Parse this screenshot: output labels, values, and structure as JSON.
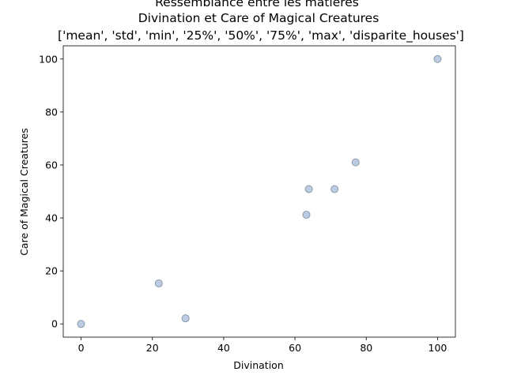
{
  "chart_data": {
    "type": "scatter",
    "title_lines": [
      "Ressemblance entre les matières",
      "Divination et Care of Magical Creatures",
      "['mean', 'std', 'min', '25%', '50%', '75%', 'max', 'disparite_houses']"
    ],
    "xlabel": "Divination",
    "ylabel": "Care of Magical Creatures",
    "xlim": [
      -5,
      105
    ],
    "ylim": [
      -5,
      105
    ],
    "xticks": [
      0,
      20,
      40,
      60,
      80,
      100
    ],
    "yticks": [
      0,
      20,
      40,
      60,
      80,
      100
    ],
    "grid": false,
    "points": [
      {
        "x": 0,
        "y": 0
      },
      {
        "x": 21.8,
        "y": 15.3
      },
      {
        "x": 29.3,
        "y": 2.1
      },
      {
        "x": 63.2,
        "y": 41.2
      },
      {
        "x": 63.9,
        "y": 50.9
      },
      {
        "x": 71.1,
        "y": 50.9
      },
      {
        "x": 77.0,
        "y": 61.0
      },
      {
        "x": 100,
        "y": 100
      }
    ],
    "marker_fill": "#b0c4de",
    "marker_edge": "#8899aa"
  }
}
